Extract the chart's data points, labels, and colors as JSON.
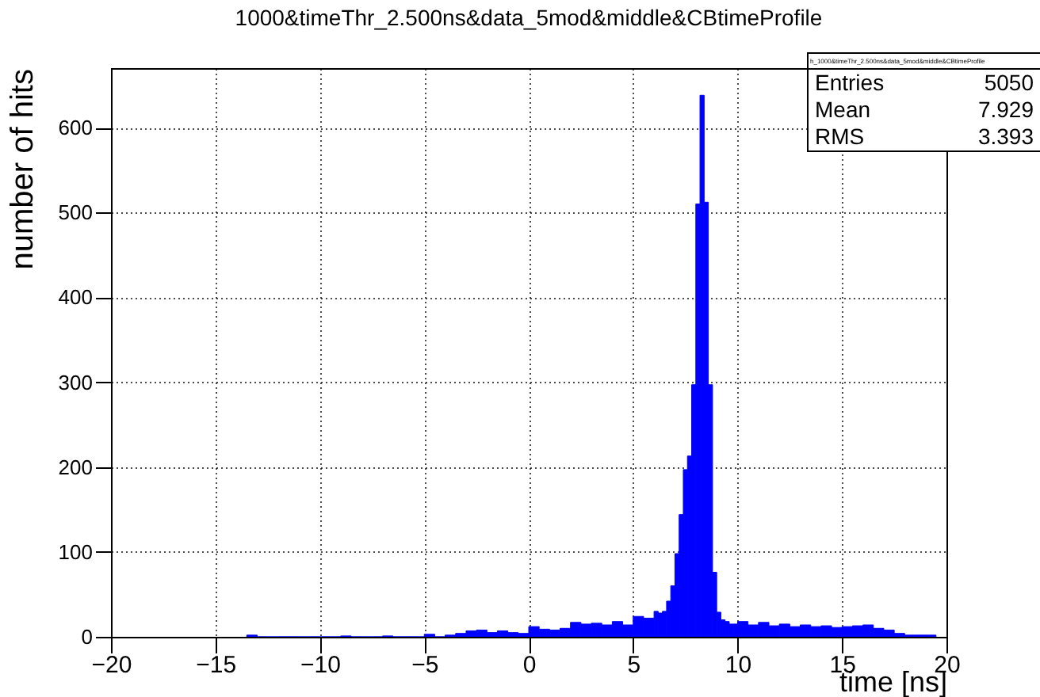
{
  "chart_data": {
    "type": "histogram",
    "title": "1000&timeThr_2.500ns&data_5mod&middle&CBtimeProfile",
    "xlabel": "time [ns]",
    "ylabel": "number of hits",
    "bins": [
      -13.5,
      -13,
      -12.5,
      -12,
      -11.5,
      -11,
      -10.5,
      -10,
      -9.5,
      -9,
      -8.5,
      -8,
      -7.5,
      -7,
      -6.5,
      -6,
      -5.5,
      -5,
      -4.5,
      -4,
      -3.5,
      -3,
      -2.5,
      -2,
      -1.5,
      -1,
      -0.5,
      0,
      0.5,
      1,
      1.5,
      2,
      2.5,
      3,
      3.5,
      4,
      4.5,
      5,
      5.5,
      6,
      6.2,
      6.4,
      6.6,
      6.8,
      7,
      7.2,
      7.4,
      7.6,
      7.8,
      8,
      8.2,
      8.4,
      8.6,
      8.8,
      9,
      9.2,
      9.4,
      9.6,
      9.8,
      10,
      10.5,
      11,
      11.5,
      12,
      12.5,
      13,
      13.5,
      14,
      14.5,
      15,
      15.5,
      16,
      16.5,
      17,
      17.5,
      18,
      18.5,
      19,
      19.5
    ],
    "values": [
      2,
      0,
      0,
      0,
      0,
      0,
      0,
      0,
      0,
      1,
      0,
      0,
      0,
      1,
      0,
      0,
      0,
      3,
      0,
      2,
      4,
      7,
      8,
      5,
      7,
      5,
      4,
      12,
      9,
      8,
      10,
      17,
      15,
      16,
      14,
      18,
      14,
      24,
      22,
      30,
      28,
      30,
      42,
      60,
      98,
      144,
      197,
      213,
      297,
      510,
      638,
      512,
      297,
      76,
      29,
      20,
      18,
      15,
      15,
      18,
      14,
      17,
      13,
      15,
      12,
      14,
      12,
      13,
      11,
      12,
      13,
      14,
      10,
      8,
      4,
      2,
      2,
      2
    ],
    "color": "#0000ff",
    "xlim": [
      -20,
      20
    ],
    "ylim": [
      0,
      670
    ],
    "xticks": [
      -20,
      -15,
      -10,
      -5,
      0,
      5,
      10,
      15,
      20
    ],
    "yticks": [
      0,
      100,
      200,
      300,
      400,
      500,
      600
    ],
    "grid": true,
    "line_style": "dotted",
    "annotations": [
      "h_1000&timeThr_2.500ns&data_5mod&middle&CBtimeProfile",
      "Entries 5050",
      "Mean 7.929",
      "RMS 3.393"
    ]
  }
}
